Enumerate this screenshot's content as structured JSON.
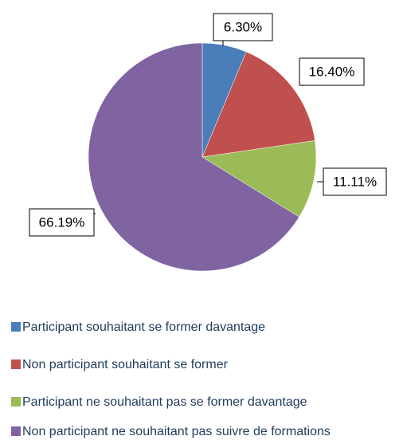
{
  "chart_data": {
    "type": "pie",
    "categories": [
      "Participant souhaitant se former davantage",
      "Non participant souhaitant se former",
      "Participant ne souhaitant pas se former davantage",
      "Non participant ne souhaitant pas suivre de formations"
    ],
    "values": [
      6.3,
      16.4,
      11.11,
      66.19
    ],
    "value_labels": [
      "6.30%",
      "16.40%",
      "11.11%",
      "66.19%"
    ],
    "colors": [
      "#4a7ebb",
      "#c0504d",
      "#9bbb59",
      "#8064a2"
    ]
  }
}
